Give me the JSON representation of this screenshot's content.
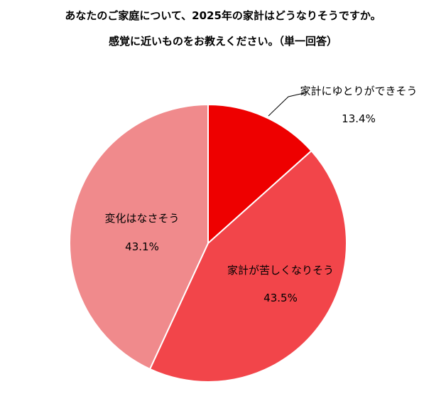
{
  "title_lines": [
    "あなたのご家庭について、2025年の家計はどうなりそうですか。",
    "感覚に近いものをお教えください。（単一回答）"
  ],
  "chart_data": {
    "type": "pie",
    "title": "あなたのご家庭について、2025年の家計はどうなりそうですか。 感覚に近いものをお教えください。（単一回答）",
    "slices": [
      {
        "label": "家計にゆとりができそう",
        "value": 13.4,
        "value_label": "13.4%",
        "color": "#ee0000"
      },
      {
        "label": "家計が苦しくなりそう",
        "value": 43.5,
        "value_label": "43.5%",
        "color": "#f2454a"
      },
      {
        "label": "変化はなさそう",
        "value": 43.1,
        "value_label": "43.1%",
        "color": "#f08a8c"
      }
    ],
    "start_angle": "12 o'clock",
    "direction": "clockwise",
    "legend": "none"
  }
}
